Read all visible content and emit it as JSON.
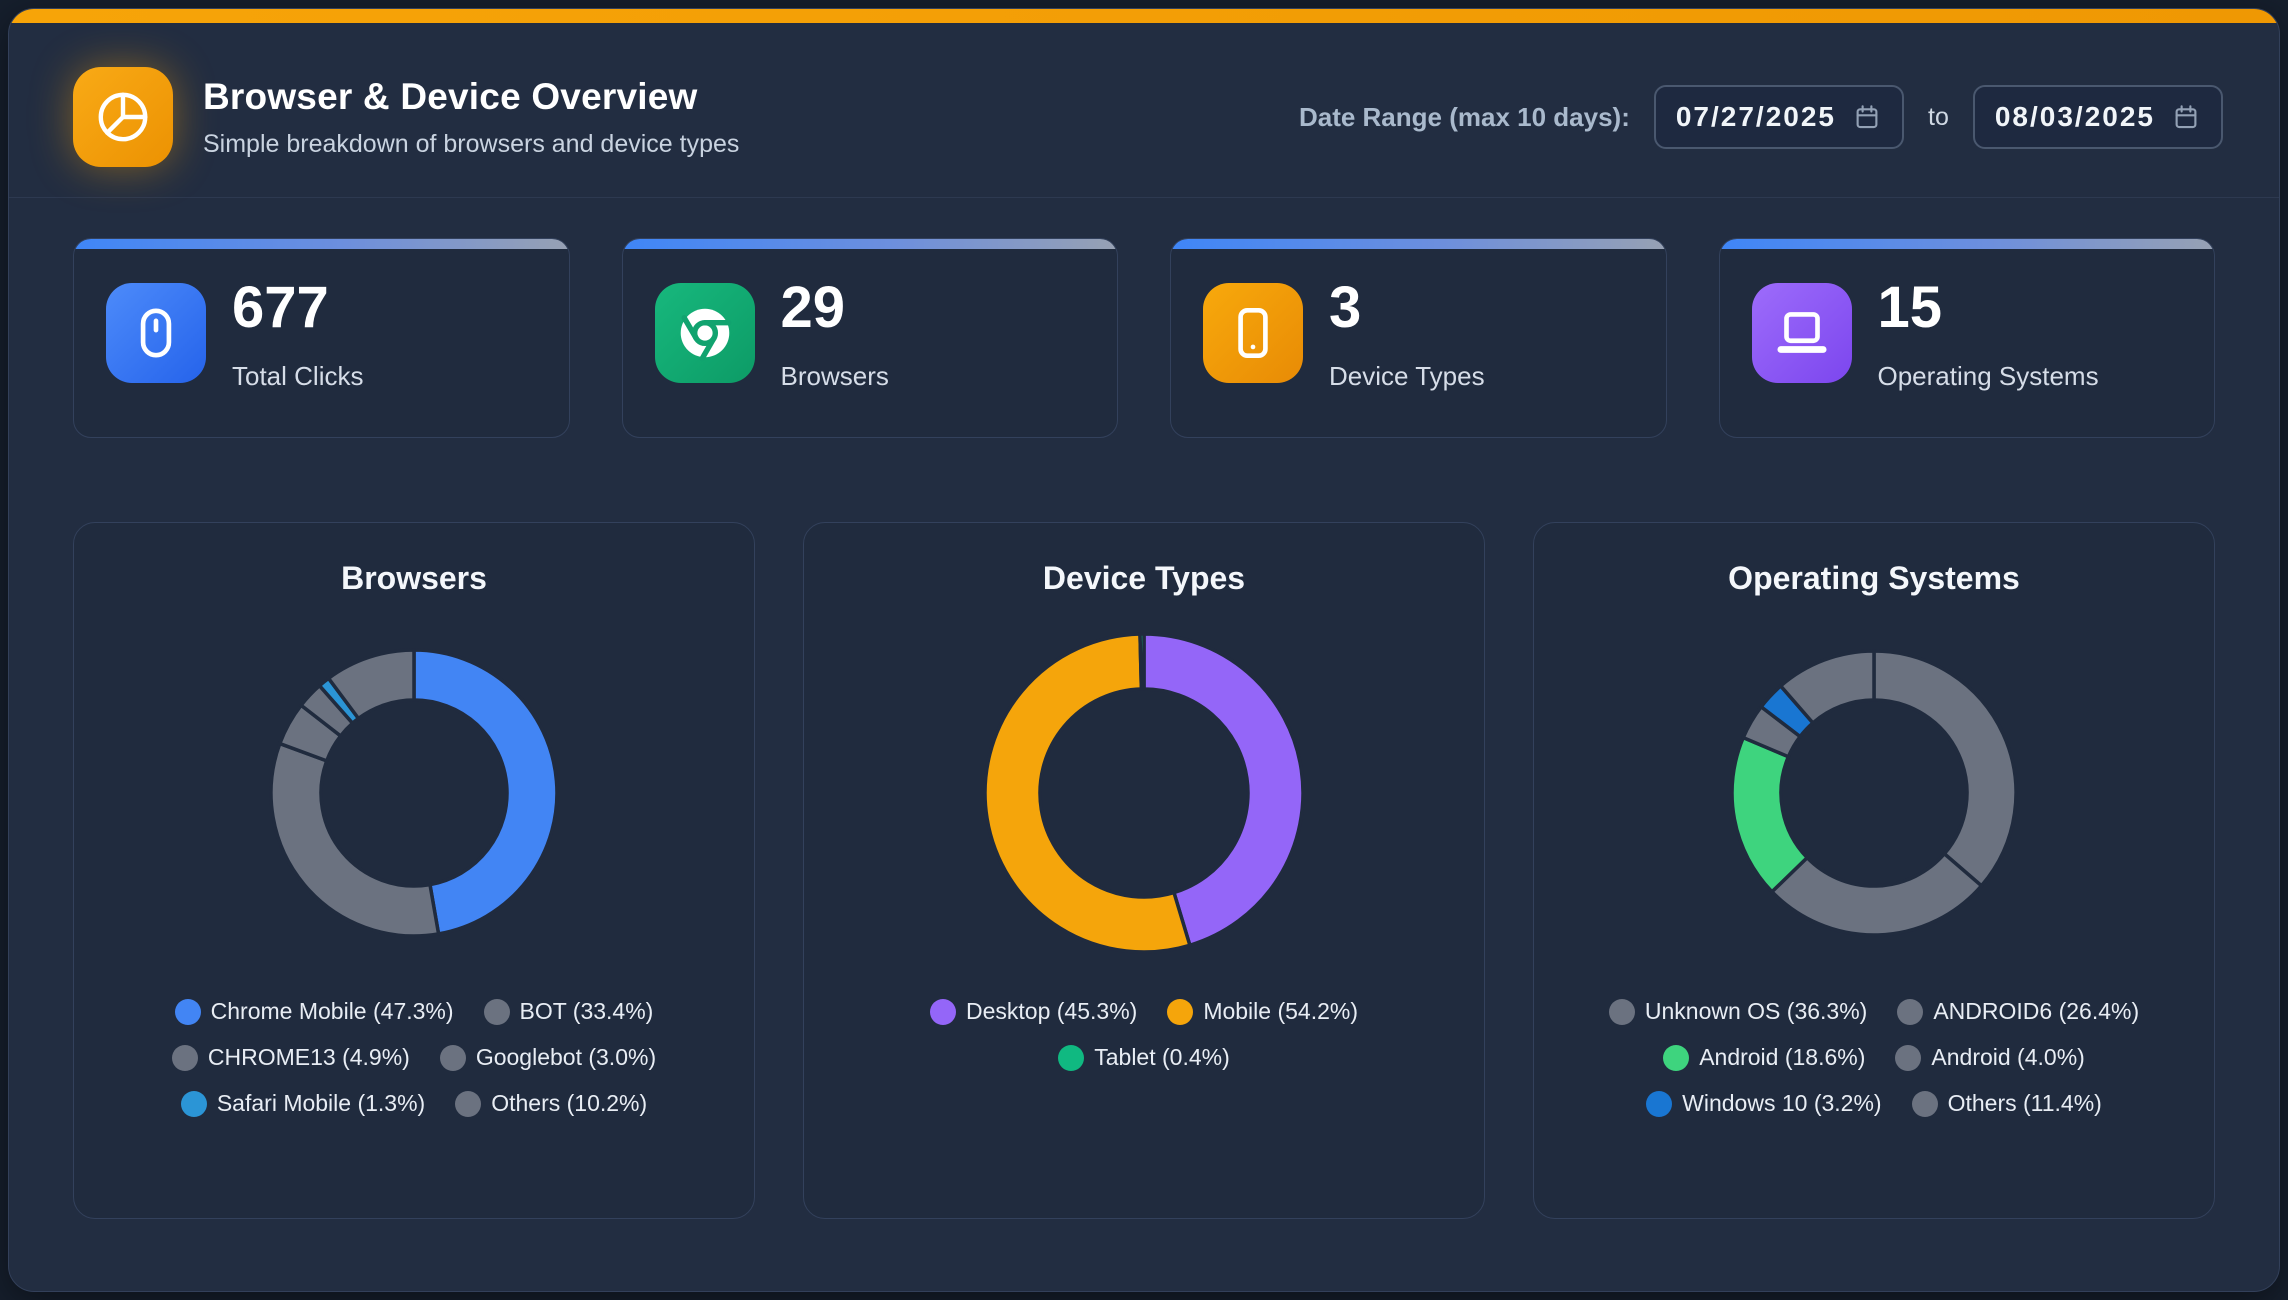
{
  "header": {
    "title": "Browser & Device Overview",
    "subtitle": "Simple breakdown of browsers and device types",
    "date_range_label": "Date Range (max 10 days):",
    "date_from": "07/27/2025",
    "date_to_separator": "to",
    "date_to": "08/03/2025"
  },
  "colors": {
    "accent_top_bar": "#F59F06",
    "stat_bar_gradient_start": "#3F86F7",
    "stat_bar_gradient_end": "#97A1B3",
    "panel_background": "#222D41",
    "card_background": "#202B3E"
  },
  "stats": [
    {
      "value": "677",
      "label": "Total Clicks",
      "icon": "mouse-icon",
      "icon_color": "#3B82F6"
    },
    {
      "value": "29",
      "label": "Browsers",
      "icon": "chrome-icon",
      "icon_color": "#10B981"
    },
    {
      "value": "3",
      "label": "Device Types",
      "icon": "smartphone-icon",
      "icon_color": "#F59E0B"
    },
    {
      "value": "15",
      "label": "Operating Systems",
      "icon": "laptop-icon",
      "icon_color": "#8B5CF6"
    }
  ],
  "chart_data": [
    {
      "id": "browsers",
      "type": "pie",
      "title": "Browsers",
      "legend_position": "bottom",
      "outer_radius": 143,
      "inner_radius": 93,
      "slices": [
        {
          "label": "Chrome Mobile",
          "value": 47.3,
          "display": "Chrome Mobile (47.3%)",
          "color": "#4285F4"
        },
        {
          "label": "BOT",
          "value": 33.4,
          "display": "BOT (33.4%)",
          "color": "#6B7280"
        },
        {
          "label": "CHROME13",
          "value": 4.9,
          "display": "CHROME13 (4.9%)",
          "color": "#6B7280"
        },
        {
          "label": "Googlebot",
          "value": 3.0,
          "display": "Googlebot (3.0%)",
          "color": "#6B7280"
        },
        {
          "label": "Safari Mobile",
          "value": 1.3,
          "display": "Safari Mobile (1.3%)",
          "color": "#2B95D6"
        },
        {
          "label": "Others",
          "value": 10.2,
          "display": "Others (10.2%)",
          "color": "#6B7280"
        }
      ]
    },
    {
      "id": "device-types",
      "type": "pie",
      "title": "Device Types",
      "legend_position": "bottom",
      "outer_radius": 159,
      "inner_radius": 104,
      "slices": [
        {
          "label": "Desktop",
          "value": 45.3,
          "display": "Desktop (45.3%)",
          "color": "#9466F8"
        },
        {
          "label": "Mobile",
          "value": 54.2,
          "display": "Mobile (54.2%)",
          "color": "#F5A50B"
        },
        {
          "label": "Tablet",
          "value": 0.4,
          "display": "Tablet (0.4%)",
          "color": "#10B981"
        }
      ]
    },
    {
      "id": "operating-systems",
      "type": "pie",
      "title": "Operating Systems",
      "legend_position": "bottom",
      "outer_radius": 142,
      "inner_radius": 93,
      "slices": [
        {
          "label": "Unknown OS",
          "value": 36.3,
          "display": "Unknown OS (36.3%)",
          "color": "#6B7280"
        },
        {
          "label": "ANDROID6",
          "value": 26.4,
          "display": "ANDROID6 (26.4%)",
          "color": "#6B7280"
        },
        {
          "label": "Android",
          "value": 18.6,
          "display": "Android (18.6%)",
          "color": "#3ED47E"
        },
        {
          "label": "Android",
          "value": 4.0,
          "display": "Android (4.0%)",
          "color": "#6B7280"
        },
        {
          "label": "Windows 10",
          "value": 3.2,
          "display": "Windows 10 (3.2%)",
          "color": "#1976D2"
        },
        {
          "label": "Others",
          "value": 11.4,
          "display": "Others (11.4%)",
          "color": "#6B7280"
        }
      ]
    }
  ]
}
